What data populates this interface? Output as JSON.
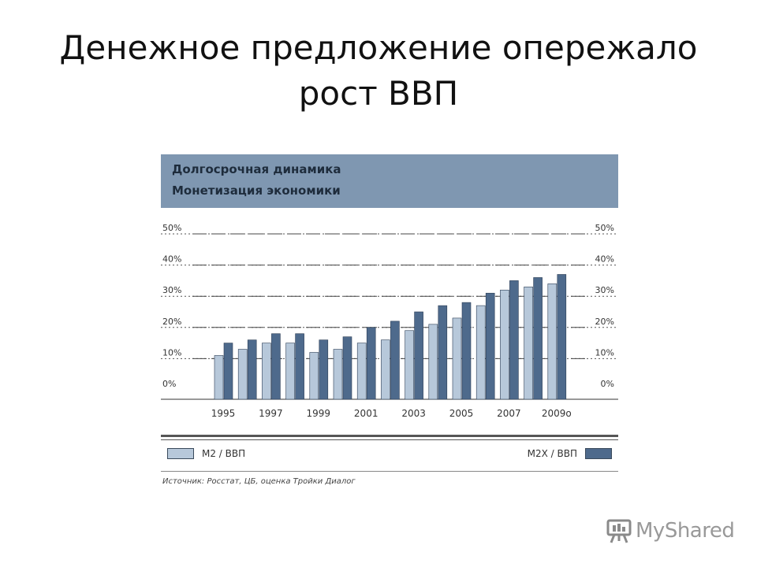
{
  "slide": {
    "title_line1": "Денежное предложение опережало",
    "title_line2": "рост ВВП"
  },
  "brand": {
    "text": "MyShared",
    "icon": "presentation-board-icon"
  },
  "chart_data": {
    "type": "bar",
    "title": "Долгосрочная динамика",
    "subtitle": "Монетизация экономики",
    "categories": [
      "1995",
      "1996",
      "1997",
      "1998",
      "1999",
      "2000",
      "2001",
      "2002",
      "2003",
      "2004",
      "2005",
      "2006",
      "2007",
      "2008",
      "2009о"
    ],
    "tick_labels_x": [
      "1995",
      "1997",
      "1999",
      "2001",
      "2003",
      "2005",
      "2007",
      "2009о"
    ],
    "series": [
      {
        "name": "М2 / ВВП",
        "color": "#b7c8da",
        "values": [
          11,
          13,
          15,
          15,
          12,
          13,
          15,
          16,
          19,
          21,
          23,
          27,
          32,
          33,
          34
        ]
      },
      {
        "name": "М2Х / ВВП",
        "color": "#4e6a8c",
        "values": [
          15,
          16,
          18,
          18,
          16,
          17,
          20,
          22,
          25,
          27,
          28,
          31,
          35,
          36,
          37
        ]
      }
    ],
    "y_ticks": [
      "0%",
      "10%",
      "20%",
      "30%",
      "40%",
      "50%"
    ],
    "ylim": [
      0,
      50
    ],
    "grid": true,
    "legend_position": "bottom",
    "source": "Источник: Росстат, ЦБ, оценка Тройки Диалог"
  }
}
